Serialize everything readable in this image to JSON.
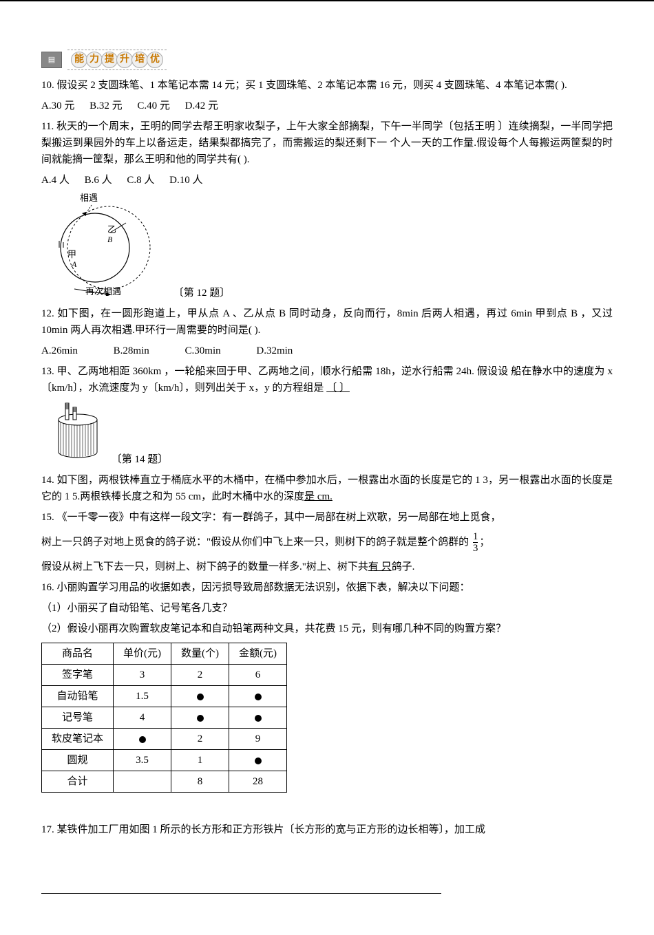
{
  "banner": {
    "chars": [
      "能",
      "力",
      "提",
      "升",
      "培",
      "优"
    ]
  },
  "q10": {
    "text": "10. 假设买 2 支圆珠笔、1 本笔记本需 14 元；买 1 支圆珠笔、2 本笔记本需 16 元，则买 4 支圆珠笔、4 本笔记本需(    ).",
    "opts": {
      "A": "A.30 元",
      "B": "B.32 元",
      "C": "C.40 元",
      "D": "D.42 元"
    }
  },
  "q11": {
    "text": "11. 秋天的一个周末，王明的同学去帮王明家收梨子，上午大家全部摘梨，下午一半同学〔包括王明 〕连续摘梨，一半同学把梨搬运到果园外的车上以备运走，结果梨都搞完了，而需搬运的梨还剩下一 个人一天的工作量.假设每个人每搬运两筐梨的时间就能摘一筐梨，那么王明和他的同学共有(        ).",
    "opts": {
      "A": "A.4 人",
      "B": "B.6 人",
      "C": "C.8 人",
      "D": "D.10 人"
    }
  },
  "fig12": {
    "label_top": "相遇",
    "label_left": "甲",
    "label_A": "A",
    "label_B": "B",
    "label_Z": "乙",
    "label_bottom": "再次相遇",
    "caption": "〔第 12 题〕"
  },
  "q12": {
    "text": "12. 如下图，在一圆形跑道上，甲从点 A 、乙从点 B 同时动身，反向而行，8min 后两人相遇，再过 6min 甲到点 B ，又过 10min 两人再次相遇.甲环行一周需要的时间是(    ).",
    "opts": {
      "A": "A.26min",
      "B": "B.28min",
      "C": "C.30min",
      "D": "D.32min"
    }
  },
  "q13": {
    "text_a": "13. 甲、乙两地相距 360km ，一轮船来回于甲、乙两地之间，顺水行船需 18h，逆水行船需 24h. 假设设 船在静水中的速度为 x〔km/h〕，水流速度为 y〔km/h〕，则列出关于 x，y 的方程组是",
    "blank": "〔  〕"
  },
  "fig14": {
    "caption": "〔第 14 题〕"
  },
  "q14": {
    "text": "14. 如下图，两根铁棒直立于桶底水平的木桶中，在桶中参加水后，一根露出水面的长度是它的 1 3，另一根露出水面的长度是它的 1 5.两根铁棒长度之和为 55 cm，此时木桶中水的深度",
    "tail": "是     cm."
  },
  "q15": {
    "text_a": "15. 《一千零一夜》中有这样一段文字：有一群鸽子，其中一局部在树上欢歌，另一局部在地上觅食，",
    "text_b": "树上一只鸽子对地上觅食的鸽子说：\"假设从你们中飞上来一只，则树下的鸽子就是整个鸽群的",
    "frac_num": "1",
    "frac_den": "3",
    "text_b_tail": "；",
    "text_c": "假设从树上飞下去一只，则树上、树下鸽子的数量一样多.\"树上、树下共",
    "blank": "有    只",
    "text_c_tail": "鸽子."
  },
  "q16": {
    "text": "16. 小丽购置学习用品的收据如表，因污损导致局部数据无法识别，依据下表，解决以下问题：",
    "part1": "（1）小丽买了自动铅笔、记号笔各几支？",
    "part2": "（2）假设小丽再次购置软皮笔记本和自动铅笔两种文具，共花费 15 元，则有哪几种不同的购置方案？",
    "table": {
      "headers": [
        "商品名",
        "单价(元)",
        "数量(个)",
        "金额(元)"
      ],
      "rows": [
        {
          "name": "签字笔",
          "price": "3",
          "qty": "2",
          "amt": "6"
        },
        {
          "name": "自动铅笔",
          "price": "1.5",
          "qty": "@dot",
          "amt": "@dot"
        },
        {
          "name": "记号笔",
          "price": "4",
          "qty": "@dot",
          "amt": "@dot"
        },
        {
          "name": "软皮笔记本",
          "price": "@dot",
          "qty": "2",
          "amt": "9"
        },
        {
          "name": "圆规",
          "price": "3.5",
          "qty": "1",
          "amt": "@dot"
        },
        {
          "name": "合计",
          "price": "",
          "qty": "8",
          "amt": "28"
        }
      ]
    }
  },
  "q17": {
    "text": "17. 某铁件加工厂用如图 1 所示的长方形和正方形铁片〔长方形的宽与正方形的边长相等〕，加工成"
  }
}
